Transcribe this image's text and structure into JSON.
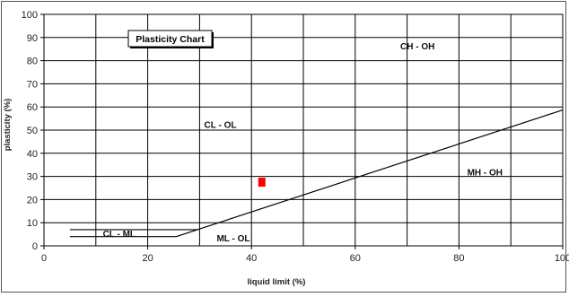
{
  "chart_data": {
    "type": "scatter",
    "title": "Plasticity Chart",
    "xlabel": "liquid limit (%)",
    "ylabel": "plasticity (%)",
    "xlim": [
      0,
      100
    ],
    "ylim": [
      0,
      100
    ],
    "x_ticks": [
      0,
      20,
      40,
      60,
      80,
      100
    ],
    "x_tick_labels": [
      "0",
      "20",
      "40",
      "60",
      "80",
      "100"
    ],
    "x_grid_step": 10,
    "y_ticks": [
      0,
      10,
      20,
      30,
      40,
      50,
      60,
      70,
      80,
      90,
      100
    ],
    "y_tick_labels": [
      "0",
      "10",
      "20",
      "30",
      "40",
      "50",
      "60",
      "70",
      "80",
      "90",
      "100"
    ],
    "grid": true,
    "a_line": {
      "x": [
        25.5,
        100
      ],
      "y": [
        4,
        58.7
      ]
    },
    "cl_ml_band": {
      "upper": {
        "x": [
          5,
          29.6
        ],
        "y": [
          7,
          7
        ]
      },
      "lower": {
        "x": [
          5,
          25.5
        ],
        "y": [
          4,
          4
        ]
      }
    },
    "points": [
      {
        "x": 42,
        "y": 27.5,
        "color": "#ff0000"
      }
    ],
    "zones": [
      {
        "label": "CH - OH",
        "x": 72,
        "y": 86.5
      },
      {
        "label": "CL - OL",
        "x": 34,
        "y": 52.5
      },
      {
        "label": "MH - OH",
        "x": 85,
        "y": 32
      },
      {
        "label": "CL - ML",
        "x": 14.5,
        "y": 5.5
      },
      {
        "label": "ML - OL",
        "x": 36.5,
        "y": 3.5
      }
    ]
  }
}
